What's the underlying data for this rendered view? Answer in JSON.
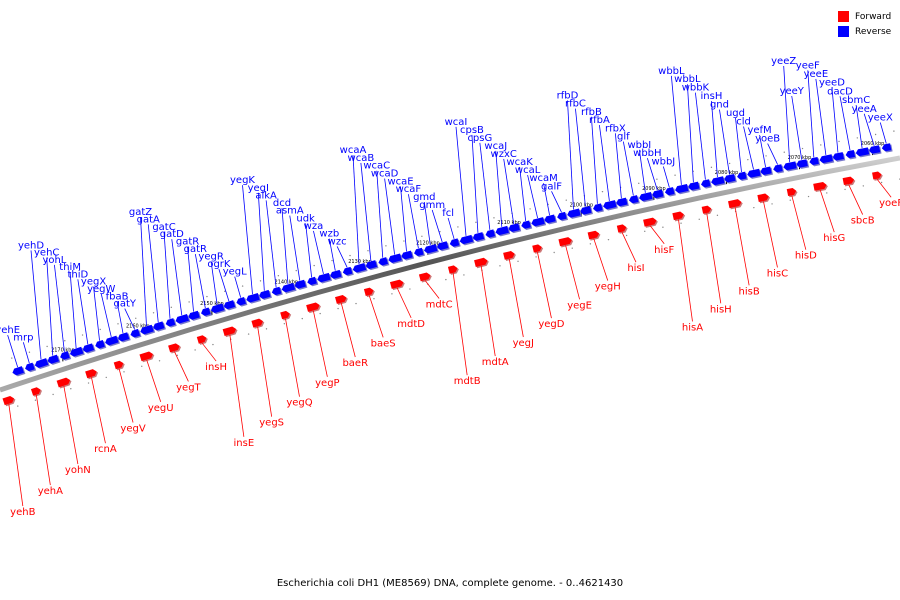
{
  "legend": {
    "forward_label": "Forward",
    "reverse_label": "Reverse",
    "forward_color": "#ff0000",
    "reverse_color": "#0000ff"
  },
  "caption": "Escherichia coli DH1 (ME8569) DNA, complete genome. - 0..4621430",
  "ticks": [
    "2060 kbp",
    "2070 kbp",
    "2080 kbp",
    "2090 kbp",
    "2100 kbp",
    "2110 kbp",
    "2120 kbp",
    "2130 kbp",
    "2140 kbp",
    "2150 kbp",
    "2160 kbp",
    "2170 kbp"
  ],
  "reverse_genes": [
    "yeeX",
    "yeeA",
    "sbmC",
    "dacD",
    "yeeD",
    "yeeE",
    "yeeF",
    "yeeY",
    "yeeZ",
    "yoeB",
    "yefM",
    "cld",
    "ugd",
    "gnd",
    "insH",
    "wbbK",
    "wbbL",
    "wbbL",
    "wbbJ",
    "wbbH",
    "wbbI",
    "glf",
    "rfbX",
    "rfbA",
    "rfbB",
    "rfbC",
    "rfbD",
    "galF",
    "wcaM",
    "wcaL",
    "wcaK",
    "wzxC",
    "wcaJ",
    "cpsG",
    "cpsB",
    "wcaI",
    "fcl",
    "gmm",
    "gmd",
    "wcaF",
    "wcaE",
    "wcaD",
    "wcaC",
    "wcaB",
    "wcaA",
    "wzc",
    "wzb",
    "wza",
    "udk",
    "asmA",
    "dcd",
    "alkA",
    "yegI",
    "yegK",
    "yegL",
    "ogrK",
    "yegR",
    "gatR",
    "gatR",
    "gatD",
    "gatC",
    "gatA",
    "gatZ",
    "gatY",
    "fbaB",
    "yegW",
    "yegX",
    "thiD",
    "thiM",
    "yohL",
    "yehC",
    "yehD",
    "mrp",
    "yehE"
  ],
  "forward_genes": [
    "yoeF",
    "sbcB",
    "hisG",
    "hisD",
    "hisC",
    "hisB",
    "hisH",
    "hisA",
    "hisF",
    "hisI",
    "yegH",
    "yegE",
    "yegD",
    "yegJ",
    "mdtA",
    "mdtB",
    "mdtC",
    "mdtD",
    "baeS",
    "baeR",
    "yegP",
    "yegQ",
    "yegS",
    "insE",
    "insH",
    "yegT",
    "yegU",
    "yegV",
    "rcnA",
    "yohN",
    "yehA",
    "yehB"
  ]
}
